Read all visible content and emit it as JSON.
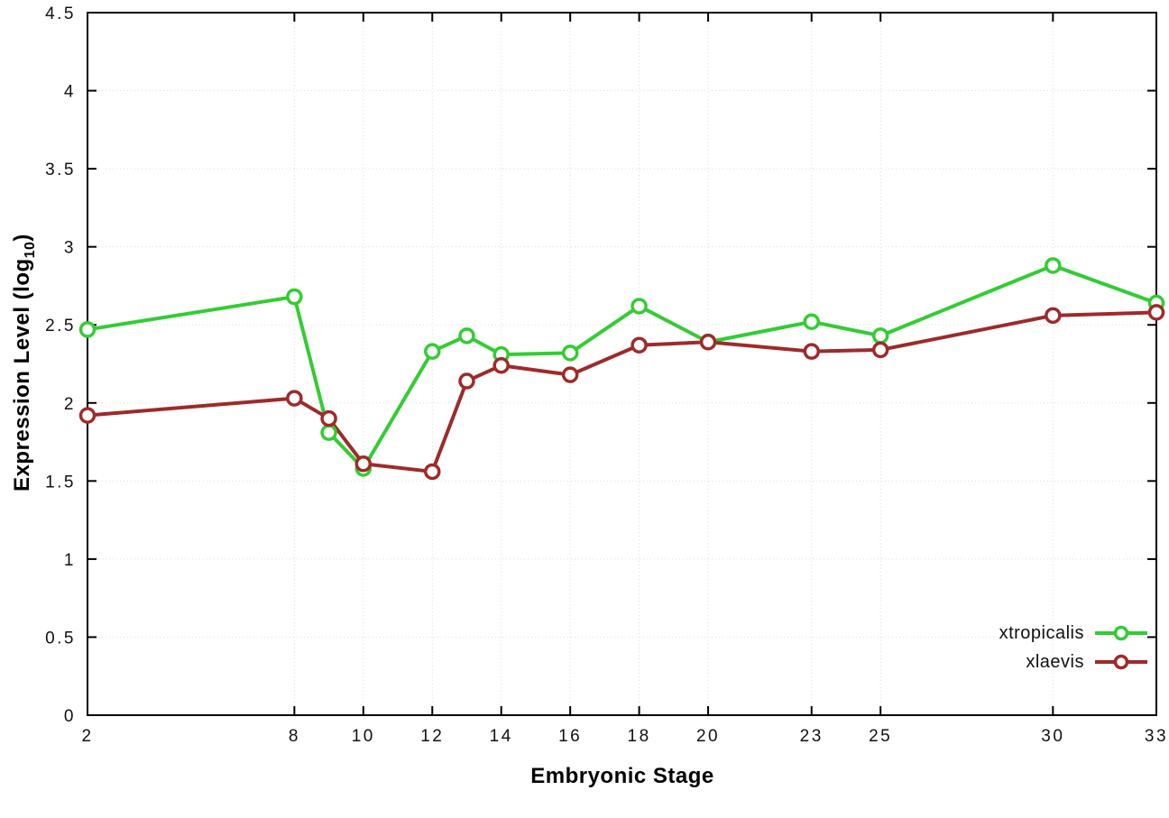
{
  "chart_data": {
    "type": "line",
    "title": "",
    "xlabel": "Embryonic Stage",
    "ylabel_prefix": "Expression Level (log",
    "ylabel_sub": "10",
    "ylabel_suffix": ")",
    "xlim": [
      2,
      33
    ],
    "ylim": [
      0,
      4.5
    ],
    "grid": true,
    "legend_position": "bottom-right",
    "xticks": [
      2,
      8,
      10,
      12,
      14,
      16,
      18,
      20,
      23,
      25,
      30,
      33
    ],
    "yticks": [
      0,
      0.5,
      1,
      1.5,
      2,
      2.5,
      3,
      3.5,
      4,
      4.5
    ],
    "ytick_labels": [
      "0",
      "0.5",
      "1",
      "1.5",
      "2",
      "2.5",
      "3",
      "3.5",
      "4",
      "4.5"
    ],
    "marker": "open-circle",
    "x": [
      2,
      8,
      9,
      10,
      12,
      13,
      14,
      16,
      18,
      20,
      23,
      25,
      30,
      33
    ],
    "series": [
      {
        "name": "xtropicalis",
        "color": "#33cc33",
        "values": [
          2.47,
          2.68,
          1.81,
          1.58,
          2.33,
          2.43,
          2.31,
          2.32,
          2.62,
          2.39,
          2.52,
          2.43,
          2.88,
          2.64
        ]
      },
      {
        "name": "xlaevis",
        "color": "#9e2a2a",
        "values": [
          1.92,
          2.03,
          1.9,
          1.61,
          1.56,
          2.14,
          2.24,
          2.18,
          2.37,
          2.39,
          2.33,
          2.34,
          2.56,
          2.58
        ]
      }
    ]
  }
}
